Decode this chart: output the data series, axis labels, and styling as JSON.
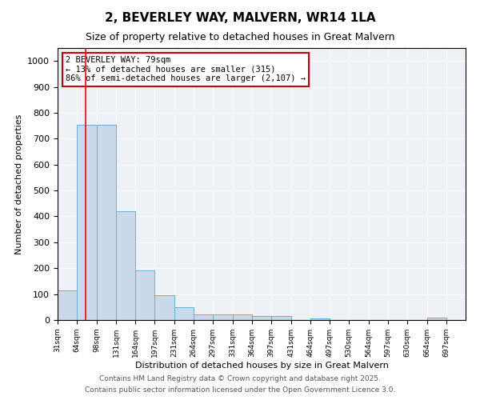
{
  "title": "2, BEVERLEY WAY, MALVERN, WR14 1LA",
  "subtitle": "Size of property relative to detached houses in Great Malvern",
  "xlabel": "Distribution of detached houses by size in Great Malvern",
  "ylabel": "Number of detached properties",
  "bin_edges": [
    31,
    64,
    98,
    131,
    164,
    197,
    231,
    264,
    297,
    331,
    364,
    397,
    431,
    464,
    497,
    530,
    564,
    597,
    630,
    664,
    697,
    730
  ],
  "bar_heights": [
    115,
    755,
    755,
    420,
    190,
    97,
    48,
    22,
    22,
    22,
    15,
    15,
    0,
    7,
    0,
    0,
    0,
    0,
    0,
    10,
    0
  ],
  "tick_labels": [
    "31sqm",
    "64sqm",
    "98sqm",
    "131sqm",
    "164sqm",
    "197sqm",
    "231sqm",
    "264sqm",
    "297sqm",
    "331sqm",
    "364sqm",
    "397sqm",
    "431sqm",
    "464sqm",
    "497sqm",
    "530sqm",
    "564sqm",
    "597sqm",
    "630sqm",
    "664sqm",
    "697sqm"
  ],
  "bar_color": "#c9d9ea",
  "bar_edge_color": "#6aaed6",
  "red_line_x": 79,
  "annotation_line1": "2 BEVERLEY WAY: 79sqm",
  "annotation_line2": "← 13% of detached houses are smaller (315)",
  "annotation_line3": "86% of semi-detached houses are larger (2,107) →",
  "annotation_box_color": "#ffffff",
  "annotation_box_edge_color": "#cc0000",
  "ylim": [
    0,
    1050
  ],
  "yticks": [
    0,
    100,
    200,
    300,
    400,
    500,
    600,
    700,
    800,
    900,
    1000
  ],
  "bg_color": "#eef2f7",
  "footer1": "Contains HM Land Registry data © Crown copyright and database right 2025.",
  "footer2": "Contains public sector information licensed under the Open Government Licence 3.0.",
  "title_fontsize": 11,
  "subtitle_fontsize": 9,
  "annotation_fontsize": 7.5,
  "footer_fontsize": 6.5,
  "ylabel_fontsize": 8,
  "xlabel_fontsize": 8
}
